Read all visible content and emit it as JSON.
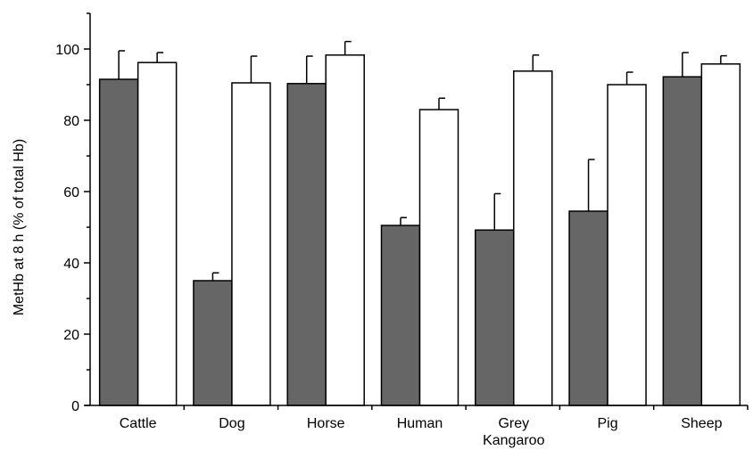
{
  "chart_data": {
    "type": "bar",
    "title": "",
    "xlabel": "",
    "ylabel": "MetHb at 8 h (% of total Hb)",
    "ylim": [
      0,
      110
    ],
    "yticks": [
      0,
      20,
      40,
      60,
      80,
      100
    ],
    "grid": false,
    "categories": [
      [
        "Cattle"
      ],
      [
        "Dog"
      ],
      [
        "Horse"
      ],
      [
        "Human"
      ],
      [
        "Grey",
        "Kangaroo"
      ],
      [
        "Pig"
      ],
      [
        "Sheep"
      ]
    ],
    "series": [
      {
        "color": "#666666",
        "values": [
          91.5,
          35,
          90.3,
          50.5,
          49.2,
          54.5,
          92.2
        ],
        "errors": [
          8,
          2.2,
          7.7,
          2.2,
          10.2,
          14.5,
          6.8
        ]
      },
      {
        "color": "#ffffff",
        "values": [
          96.2,
          90.5,
          98.3,
          83,
          93.8,
          90,
          95.8
        ],
        "errors": [
          2.8,
          7.5,
          3.8,
          3.2,
          4.5,
          3.5,
          2.3
        ]
      }
    ]
  }
}
